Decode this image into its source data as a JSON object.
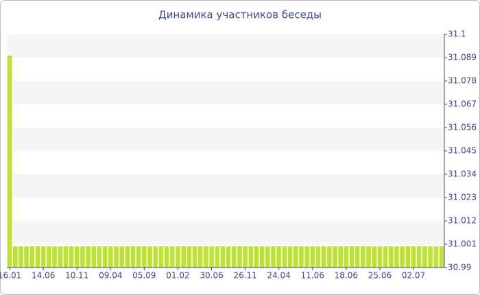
{
  "chart_data": {
    "type": "bar",
    "title": "Динамика участников беседы",
    "categories": [
      "16.01",
      null,
      null,
      null,
      null,
      null,
      "14.06",
      null,
      null,
      null,
      null,
      null,
      "10.11",
      null,
      null,
      null,
      null,
      null,
      "09.04",
      null,
      null,
      null,
      null,
      null,
      "05.09",
      null,
      null,
      null,
      null,
      null,
      "01.02",
      null,
      null,
      null,
      null,
      null,
      "30.06",
      null,
      null,
      null,
      null,
      null,
      "26.11",
      null,
      null,
      null,
      null,
      null,
      "24.04",
      null,
      null,
      null,
      null,
      null,
      "11.06",
      null,
      null,
      null,
      null,
      null,
      "18.06",
      null,
      null,
      null,
      null,
      null,
      "25.06",
      null,
      null,
      null,
      null,
      null,
      "02.07",
      null,
      null,
      null,
      null,
      null
    ],
    "values": [
      31.09,
      31,
      31,
      31,
      31,
      31,
      31,
      31,
      31,
      31,
      31,
      31,
      31,
      31,
      31,
      31,
      31,
      31,
      31,
      31,
      31,
      31,
      31,
      31,
      31,
      31,
      31,
      31,
      31,
      31,
      31,
      31,
      31,
      31,
      31,
      31,
      31,
      31,
      31,
      31,
      31,
      31,
      31,
      31,
      31,
      31,
      31,
      31,
      31,
      31,
      31,
      31,
      31,
      31,
      31,
      31,
      31,
      31,
      31,
      31,
      31,
      31,
      31,
      31,
      31,
      31,
      31,
      31,
      31,
      31,
      31,
      31,
      31,
      31,
      31,
      31,
      31,
      31
    ],
    "color": "#bce332",
    "ylim": [
      30.99,
      31.1
    ],
    "yticks": [
      30.99,
      31.001,
      31.012,
      31.023,
      31.034,
      31.045,
      31.056,
      31.067,
      31.078,
      31.089,
      31.1
    ],
    "grid": true
  }
}
